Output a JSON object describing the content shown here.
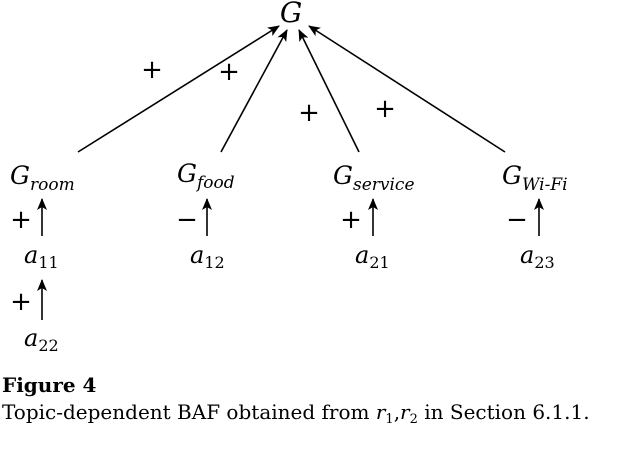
{
  "diagram": {
    "root_label": "G",
    "goals": [
      {
        "base": "G",
        "subscript": "room"
      },
      {
        "base": "G",
        "subscript": "food"
      },
      {
        "base": "G",
        "subscript": "service"
      },
      {
        "base": "G",
        "subscript": "Wi-Fi"
      }
    ],
    "arguments": [
      {
        "base": "a",
        "subscript": "11"
      },
      {
        "base": "a",
        "subscript": "12"
      },
      {
        "base": "a",
        "subscript": "21"
      },
      {
        "base": "a",
        "subscript": "23"
      },
      {
        "base": "a",
        "subscript": "22"
      }
    ],
    "edge_signs": {
      "room_to_root": "+",
      "food_to_root": "+",
      "service_to_root": "+",
      "wifi_to_root": "+",
      "a11_to_room": "+",
      "a12_to_food": "−",
      "a21_to_service": "+",
      "a23_to_wifi": "−",
      "a22_to_a11": "+"
    }
  },
  "caption": {
    "title": "Figure 4",
    "text_before": "Topic-dependent BAF obtained from ",
    "r1_base": "r",
    "r1_sub": "1",
    "separator": ",",
    "r2_base": "r",
    "r2_sub": "2",
    "text_after": " in Section 6.1.1."
  }
}
